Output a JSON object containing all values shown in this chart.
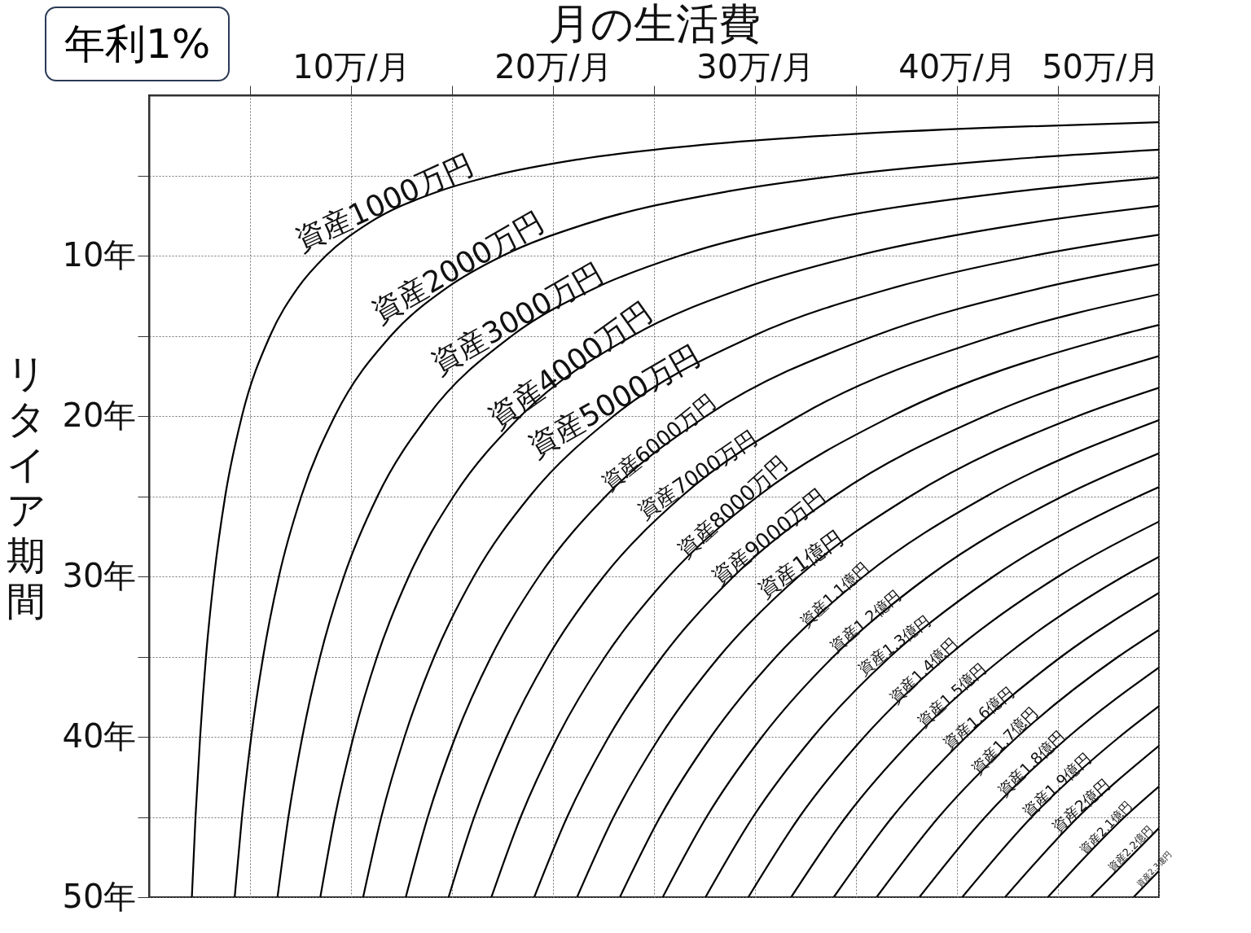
{
  "chart_data": {
    "type": "line",
    "title": "年利1%",
    "xlabel": "月の生活費",
    "ylabel": "リタイア期間",
    "xlim": [
      0,
      50
    ],
    "ylim": [
      50,
      0
    ],
    "xticks": [
      {
        "value": 5,
        "label": null
      },
      {
        "value": 10,
        "label": "10万/月"
      },
      {
        "value": 15,
        "label": null
      },
      {
        "value": 20,
        "label": "20万/月"
      },
      {
        "value": 25,
        "label": null
      },
      {
        "value": 30,
        "label": "30万/月"
      },
      {
        "value": 35,
        "label": null
      },
      {
        "value": 40,
        "label": "40万/月"
      },
      {
        "value": 45,
        "label": null
      },
      {
        "value": 50,
        "label": "50万/月"
      }
    ],
    "yticks": [
      {
        "value": 5,
        "label": null
      },
      {
        "value": 10,
        "label": "10年"
      },
      {
        "value": 15,
        "label": null
      },
      {
        "value": 20,
        "label": "20年"
      },
      {
        "value": 25,
        "label": null
      },
      {
        "value": 30,
        "label": "30年"
      },
      {
        "value": 35,
        "label": null
      },
      {
        "value": 40,
        "label": "40年"
      },
      {
        "value": 45,
        "label": null
      },
      {
        "value": 50,
        "label": "50年"
      }
    ],
    "grid": true,
    "series": [
      {
        "name": "資産1000万円",
        "color": "#000000",
        "x": [
          2.12,
          2.3,
          2.53,
          2.82,
          3.22,
          3.77,
          4.6,
          5.99,
          7.37,
          8.76,
          10.84,
          14.32,
          17.09,
          21.26,
          28.21,
          33.76,
          42.11,
          50
        ],
        "values": [
          50,
          45,
          40,
          35,
          30,
          25,
          20,
          15,
          12,
          10,
          8,
          6,
          5,
          4,
          3,
          2.5,
          2,
          1.68
        ]
      },
      {
        "name": "資産2000万円",
        "color": "#000000",
        "x": [
          4.24,
          4.6,
          5.06,
          5.65,
          6.43,
          7.54,
          9.2,
          11.97,
          14.75,
          17.52,
          21.68,
          28.63,
          34.19,
          42.53,
          50
        ],
        "values": [
          50,
          45,
          40,
          35,
          30,
          25,
          20,
          15,
          12,
          10,
          8,
          6,
          5,
          4,
          3.39
        ]
      },
      {
        "name": "資産3000万円",
        "color": "#000000",
        "x": [
          6.36,
          6.9,
          7.59,
          8.47,
          9.65,
          11.31,
          13.8,
          17.96,
          22.12,
          26.29,
          32.53,
          42.95,
          50
        ],
        "values": [
          50,
          45,
          40,
          35,
          30,
          25,
          20,
          15,
          12,
          10,
          8,
          6,
          5.13
        ]
      },
      {
        "name": "資産4000万円",
        "color": "#000000",
        "x": [
          8.48,
          9.2,
          10.12,
          11.29,
          12.86,
          15.08,
          18.4,
          23.94,
          29.5,
          35.05,
          43.37,
          50
        ],
        "values": [
          50,
          45,
          40,
          35,
          30,
          25,
          20,
          15,
          12,
          10,
          8,
          6.9
        ]
      },
      {
        "name": "資産5000万円",
        "color": "#000000",
        "x": [
          10.6,
          11.5,
          12.65,
          14.12,
          16.08,
          18.85,
          23,
          29.93,
          36.87,
          43.81,
          50
        ],
        "values": [
          50,
          45,
          40,
          35,
          30,
          25,
          20,
          15,
          12,
          10,
          8.7
        ]
      },
      {
        "name": "資産6000万円",
        "color": "#000000",
        "x": [
          12.71,
          13.8,
          15.17,
          16.94,
          19.3,
          22.61,
          27.59,
          35.92,
          44.24,
          50
        ],
        "values": [
          50,
          45,
          40,
          35,
          30,
          25,
          20,
          15,
          12,
          10.54
        ]
      },
      {
        "name": "資産7000万円",
        "color": "#000000",
        "x": [
          14.83,
          16.1,
          17.7,
          19.76,
          22.51,
          26.38,
          32.19,
          41.9,
          50
        ],
        "values": [
          50,
          45,
          40,
          35,
          30,
          25,
          20,
          15,
          12.41
        ]
      },
      {
        "name": "資産8000万円",
        "color": "#000000",
        "x": [
          16.95,
          18.4,
          20.23,
          22.58,
          25.73,
          30.15,
          36.79,
          47.89,
          50
        ],
        "values": [
          50,
          45,
          40,
          35,
          30,
          25,
          20,
          15,
          14.32
        ]
      },
      {
        "name": "資産9000万円",
        "color": "#000000",
        "x": [
          19.07,
          20.7,
          22.76,
          25.41,
          28.94,
          33.92,
          41.39,
          50
        ],
        "values": [
          50,
          45,
          40,
          35,
          30,
          25,
          20,
          16.26
        ]
      },
      {
        "name": "資産1億円",
        "color": "#000000",
        "x": [
          21.19,
          23,
          25.29,
          28.23,
          32.16,
          37.69,
          45.99,
          50
        ],
        "values": [
          50,
          45,
          40,
          35,
          30,
          25,
          20,
          18.24
        ]
      },
      {
        "name": "資産1.1億円",
        "color": "#000000",
        "x": [
          23.31,
          25.3,
          27.82,
          31.05,
          35.38,
          41.46,
          50
        ],
        "values": [
          50,
          45,
          40,
          35,
          30,
          25,
          20.26
        ]
      },
      {
        "name": "資産1.2億円",
        "color": "#000000",
        "x": [
          25.43,
          27.6,
          30.35,
          33.88,
          38.59,
          45.23,
          50
        ],
        "values": [
          50,
          45,
          40,
          35,
          30,
          25,
          22.32
        ]
      },
      {
        "name": "資産1.3億円",
        "color": "#000000",
        "x": [
          27.55,
          29.9,
          32.88,
          36.7,
          41.81,
          49,
          50
        ],
        "values": [
          50,
          45,
          40,
          35,
          30,
          25,
          24.43
        ]
      },
      {
        "name": "資産1.4億円",
        "color": "#000000",
        "x": [
          29.67,
          32.2,
          35.41,
          39.52,
          45.02,
          50
        ],
        "values": [
          50,
          45,
          40,
          35,
          30,
          26.58
        ]
      },
      {
        "name": "資産1.5億円",
        "color": "#000000",
        "x": [
          31.79,
          34.5,
          37.94,
          42.35,
          48.24,
          50
        ],
        "values": [
          50,
          45,
          40,
          35,
          30,
          28.78
        ]
      },
      {
        "name": "資産1.6億円",
        "color": "#000000",
        "x": [
          33.9,
          36.8,
          40.46,
          45.17,
          50
        ],
        "values": [
          50,
          45,
          40,
          35,
          31.03
        ]
      },
      {
        "name": "資産1.7億円",
        "color": "#000000",
        "x": [
          36.02,
          39.1,
          42.99,
          47.99,
          50
        ],
        "values": [
          50,
          45,
          40,
          35,
          33.33
        ]
      },
      {
        "name": "資産1.8億円",
        "color": "#000000",
        "x": [
          38.14,
          41.4,
          45.52,
          50
        ],
        "values": [
          50,
          45,
          40,
          35.68
        ]
      },
      {
        "name": "資産1.9億円",
        "color": "#000000",
        "x": [
          40.26,
          43.7,
          48.05,
          50
        ],
        "values": [
          50,
          45,
          40,
          38.09
        ]
      },
      {
        "name": "資産2億円",
        "color": "#000000",
        "x": [
          42.38,
          46,
          50
        ],
        "values": [
          50,
          45,
          40.56
        ]
      },
      {
        "name": "資産2.1億円",
        "color": "#000000",
        "x": [
          44.5,
          48.3,
          50
        ],
        "values": [
          50,
          45,
          43.1
        ]
      },
      {
        "name": "資産2.2億円",
        "color": "#000000",
        "x": [
          46.62,
          50
        ],
        "values": [
          50,
          45.69
        ]
      },
      {
        "name": "資産2.3億円",
        "color": "#000000",
        "x": [
          48.74,
          50
        ],
        "values": [
          50,
          48.36
        ]
      }
    ]
  }
}
